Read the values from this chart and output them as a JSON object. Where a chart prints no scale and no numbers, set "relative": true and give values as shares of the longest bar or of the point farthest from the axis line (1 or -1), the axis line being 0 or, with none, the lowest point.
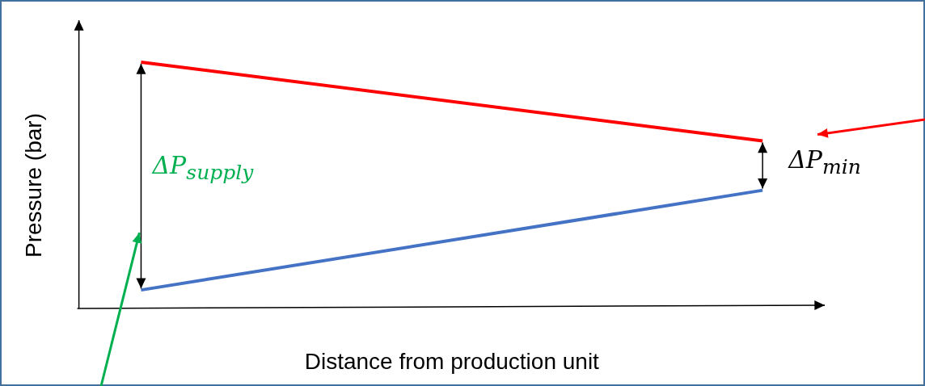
{
  "chart_data": {
    "type": "line",
    "relative": true,
    "xlabel": "Distance from production unit",
    "ylabel": "Pressure (bar)",
    "categories": [
      null,
      null,
      null,
      null,
      null,
      null,
      null,
      null,
      null,
      null,
      null,
      null,
      null
    ],
    "series": [
      {
        "color": "#ff0000",
        "values": [
          null,
          1,
          null,
          null,
          null,
          null,
          null,
          null,
          null,
          null,
          null,
          0.68,
          null
        ]
      },
      {
        "color": "#4472c4",
        "values": [
          null,
          0.075,
          null,
          null,
          null,
          null,
          null,
          null,
          null,
          null,
          null,
          0.48,
          null
        ]
      }
    ],
    "annotations": [
      "ΔP$_{supply}$",
      "ΔP$_{min}$"
    ],
    "legend": false,
    "grid": false,
    "marker": "none"
  }
}
